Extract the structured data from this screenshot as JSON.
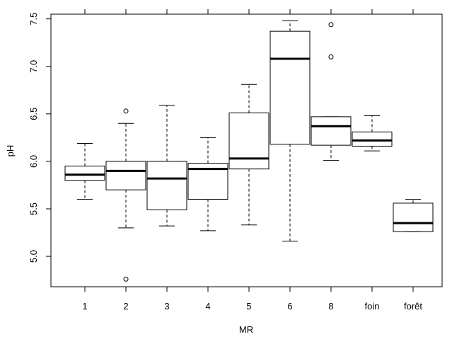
{
  "chart_data": {
    "type": "boxplot",
    "title": "",
    "xlabel": "MR",
    "ylabel": "pH",
    "ylim": [
      4.68,
      7.55
    ],
    "yticks": [
      "5.0",
      "5.5",
      "6.0",
      "6.5",
      "7.0",
      "7.5"
    ],
    "categories": [
      "1",
      "2",
      "3",
      "4",
      "5",
      "6",
      "8",
      "foin",
      "forêt"
    ],
    "boxes": [
      {
        "category": "1",
        "whisker_low": 5.6,
        "q1": 5.8,
        "median": 5.86,
        "q3": 5.95,
        "whisker_high": 6.19,
        "outliers": []
      },
      {
        "category": "2",
        "whisker_low": 5.3,
        "q1": 5.7,
        "median": 5.9,
        "q3": 6.0,
        "whisker_high": 6.4,
        "outliers": [
          6.53,
          4.76
        ]
      },
      {
        "category": "3",
        "whisker_low": 5.32,
        "q1": 5.49,
        "median": 5.82,
        "q3": 6.0,
        "whisker_high": 6.59,
        "outliers": []
      },
      {
        "category": "4",
        "whisker_low": 5.27,
        "q1": 5.6,
        "median": 5.92,
        "q3": 5.98,
        "whisker_high": 6.25,
        "outliers": []
      },
      {
        "category": "5",
        "whisker_low": 5.33,
        "q1": 5.92,
        "median": 6.03,
        "q3": 6.51,
        "whisker_high": 6.81,
        "outliers": []
      },
      {
        "category": "6",
        "whisker_low": 5.16,
        "q1": 6.18,
        "median": 7.08,
        "q3": 7.37,
        "whisker_high": 7.48,
        "outliers": []
      },
      {
        "category": "8",
        "whisker_low": 6.01,
        "q1": 6.17,
        "median": 6.37,
        "q3": 6.47,
        "whisker_high": 6.47,
        "outliers": [
          7.44,
          7.1
        ]
      },
      {
        "category": "foin",
        "whisker_low": 6.11,
        "q1": 6.16,
        "median": 6.22,
        "q3": 6.31,
        "whisker_high": 6.48,
        "outliers": []
      },
      {
        "category": "forêt",
        "whisker_low": 5.26,
        "q1": 5.26,
        "median": 5.35,
        "q3": 5.56,
        "whisker_high": 5.6,
        "outliers": []
      }
    ],
    "grid": false,
    "legend": "none"
  }
}
